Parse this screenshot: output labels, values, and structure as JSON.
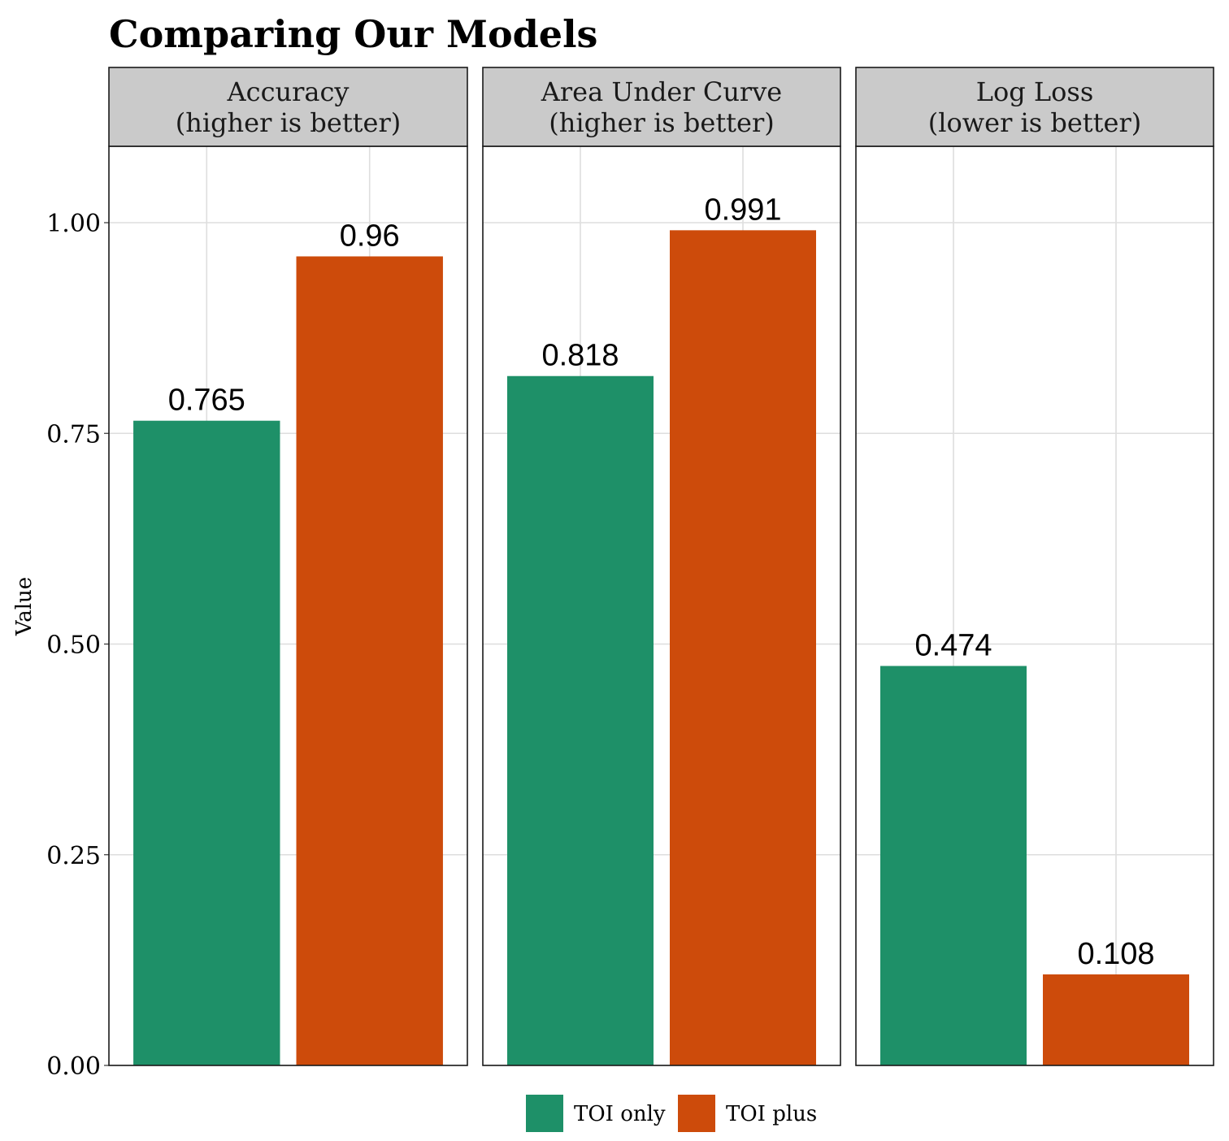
{
  "chart_data": {
    "type": "bar",
    "title": "Comparing Our Models",
    "ylabel": "Value",
    "ylim": [
      0,
      1.1
    ],
    "yticks": [
      0,
      0.25,
      0.5,
      0.75,
      1.0
    ],
    "ytick_labels": [
      "0.00",
      "0.25",
      "0.50",
      "0.75",
      "1.00"
    ],
    "grid": true,
    "legend_position": "bottom",
    "series": [
      {
        "name": "TOI only",
        "color": "#1e9068"
      },
      {
        "name": "TOI plus",
        "color": "#cd4b0b"
      }
    ],
    "facets": [
      {
        "label_line1": "Accuracy",
        "label_line2": "(higher is better)",
        "values": [
          0.765,
          0.96
        ],
        "value_labels": [
          "0.765",
          "0.96"
        ]
      },
      {
        "label_line1": "Area Under Curve",
        "label_line2": "(higher is better)",
        "values": [
          0.818,
          0.991
        ],
        "value_labels": [
          "0.818",
          "0.991"
        ]
      },
      {
        "label_line1": "Log Loss",
        "label_line2": "(lower is better)",
        "values": [
          0.474,
          0.108
        ],
        "value_labels": [
          "0.474",
          "0.108"
        ]
      }
    ]
  }
}
